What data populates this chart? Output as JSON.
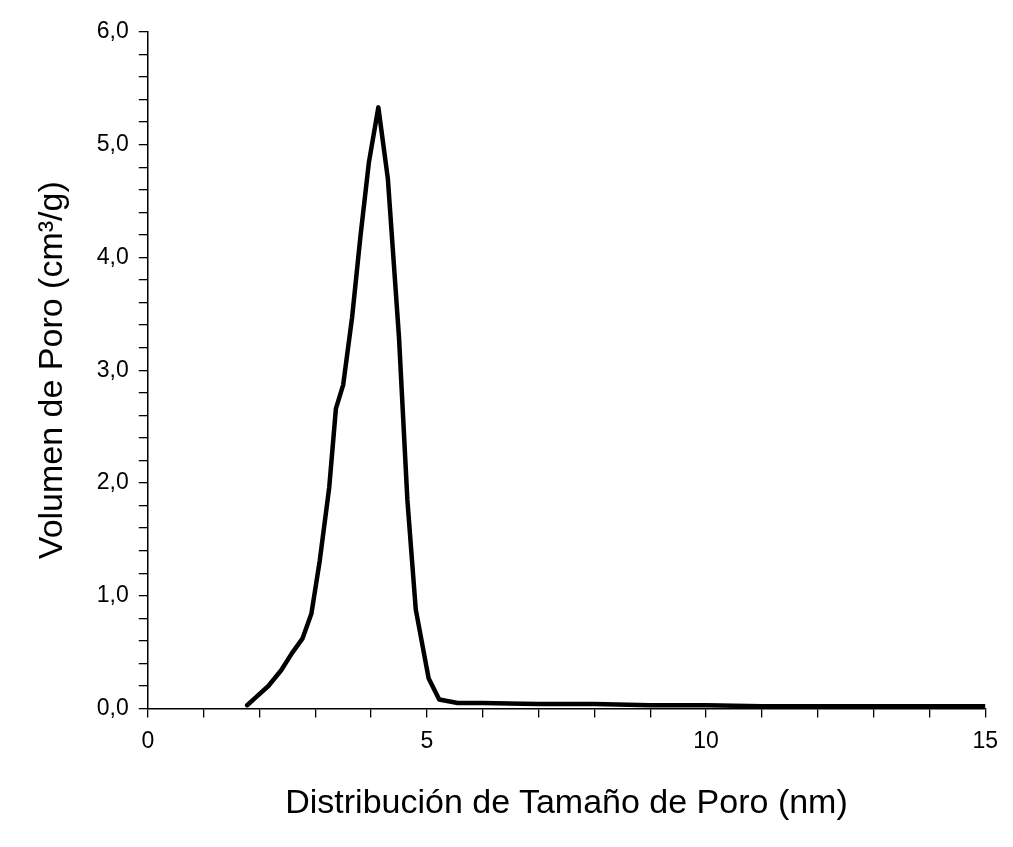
{
  "chart_data": {
    "type": "line",
    "xlabel": "Distribución de Tamaño de Poro (nm)",
    "ylabel": "Volumen de Poro (cm³/g)",
    "xlim": [
      0,
      15
    ],
    "ylim": [
      0,
      6
    ],
    "xticks": [
      0,
      {
        "value": 1,
        "label": null
      },
      {
        "value": 2,
        "label": null
      },
      {
        "value": 3,
        "label": null
      },
      {
        "value": 4,
        "label": null
      },
      5,
      {
        "value": 6,
        "label": null
      },
      {
        "value": 7,
        "label": null
      },
      {
        "value": 8,
        "label": null
      },
      {
        "value": 9,
        "label": null
      },
      10,
      {
        "value": 11,
        "label": null
      },
      {
        "value": 12,
        "label": null
      },
      {
        "value": 13,
        "label": null
      },
      {
        "value": 14,
        "label": null
      },
      15
    ],
    "yticks": [
      {
        "value": 0,
        "label": "0,0"
      },
      {
        "value": 0.2,
        "label": null
      },
      {
        "value": 0.4,
        "label": null
      },
      {
        "value": 0.6,
        "label": null
      },
      {
        "value": 0.8,
        "label": null
      },
      {
        "value": 1,
        "label": "1,0"
      },
      {
        "value": 1.2,
        "label": null
      },
      {
        "value": 1.4,
        "label": null
      },
      {
        "value": 1.6,
        "label": null
      },
      {
        "value": 1.8,
        "label": null
      },
      {
        "value": 2,
        "label": "2,0"
      },
      {
        "value": 2.2,
        "label": null
      },
      {
        "value": 2.4,
        "label": null
      },
      {
        "value": 2.6,
        "label": null
      },
      {
        "value": 2.8,
        "label": null
      },
      {
        "value": 3,
        "label": "3,0"
      },
      {
        "value": 3.2,
        "label": null
      },
      {
        "value": 3.4,
        "label": null
      },
      {
        "value": 3.6,
        "label": null
      },
      {
        "value": 3.8,
        "label": null
      },
      {
        "value": 4,
        "label": "4,0"
      },
      {
        "value": 4.2,
        "label": null
      },
      {
        "value": 4.4,
        "label": null
      },
      {
        "value": 4.6,
        "label": null
      },
      {
        "value": 4.8,
        "label": null
      },
      {
        "value": 5,
        "label": "5,0"
      },
      {
        "value": 5.2,
        "label": null
      },
      {
        "value": 5.4,
        "label": null
      },
      {
        "value": 5.6,
        "label": null
      },
      {
        "value": 5.8,
        "label": null
      },
      {
        "value": 6,
        "label": "6,0"
      }
    ],
    "grid": false,
    "legend": false,
    "marker": "none",
    "line_style": "solid",
    "series": [
      {
        "color": "#000000",
        "x": [
          1.78,
          2.16,
          2.39,
          2.58,
          2.77,
          2.93,
          3.08,
          3.25,
          3.37,
          3.5,
          3.66,
          3.81,
          3.96,
          4.13,
          4.3,
          4.5,
          4.65,
          4.8,
          5.03,
          5.22,
          5.55,
          6,
          7,
          8,
          9,
          10,
          11,
          12,
          13,
          14,
          15
        ],
        "values": [
          0.03,
          0.2,
          0.34,
          0.49,
          0.62,
          0.84,
          1.31,
          1.96,
          2.66,
          2.87,
          3.47,
          4.19,
          4.84,
          5.33,
          4.7,
          3.29,
          1.85,
          0.88,
          0.27,
          0.08,
          0.05,
          0.05,
          0.04,
          0.04,
          0.03,
          0.03,
          0.02,
          0.02,
          0.02,
          0.02,
          0.02
        ]
      }
    ]
  }
}
